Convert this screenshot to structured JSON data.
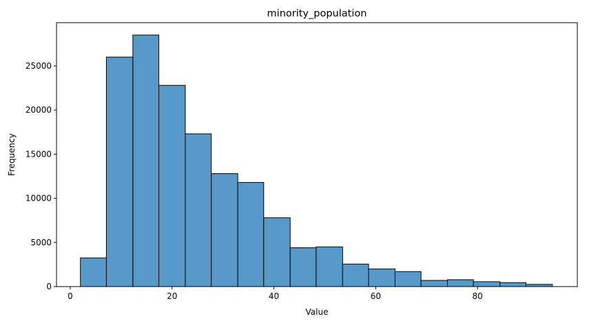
{
  "chart_data": {
    "type": "bar",
    "title": "minority_population",
    "xlabel": "Value",
    "ylabel": "Frequency",
    "xlim": [
      -2.7,
      99.6
    ],
    "ylim": [
      0,
      29900
    ],
    "x_ticks": [
      0,
      20,
      40,
      60,
      80
    ],
    "y_ticks": [
      0,
      5000,
      10000,
      15000,
      20000,
      25000
    ],
    "bin_edges": [
      2.0,
      7.1,
      12.3,
      17.4,
      22.6,
      27.7,
      32.9,
      38.0,
      43.2,
      48.3,
      53.5,
      58.6,
      63.8,
      68.9,
      74.1,
      79.2,
      84.4,
      89.5,
      94.7
    ],
    "values": [
      3250,
      26000,
      28500,
      22800,
      17300,
      12800,
      11800,
      7800,
      4400,
      4500,
      2550,
      2000,
      1700,
      700,
      780,
      550,
      450,
      250
    ],
    "grid": false,
    "bar_color": "#5799c8",
    "edge_color": "#000000"
  }
}
